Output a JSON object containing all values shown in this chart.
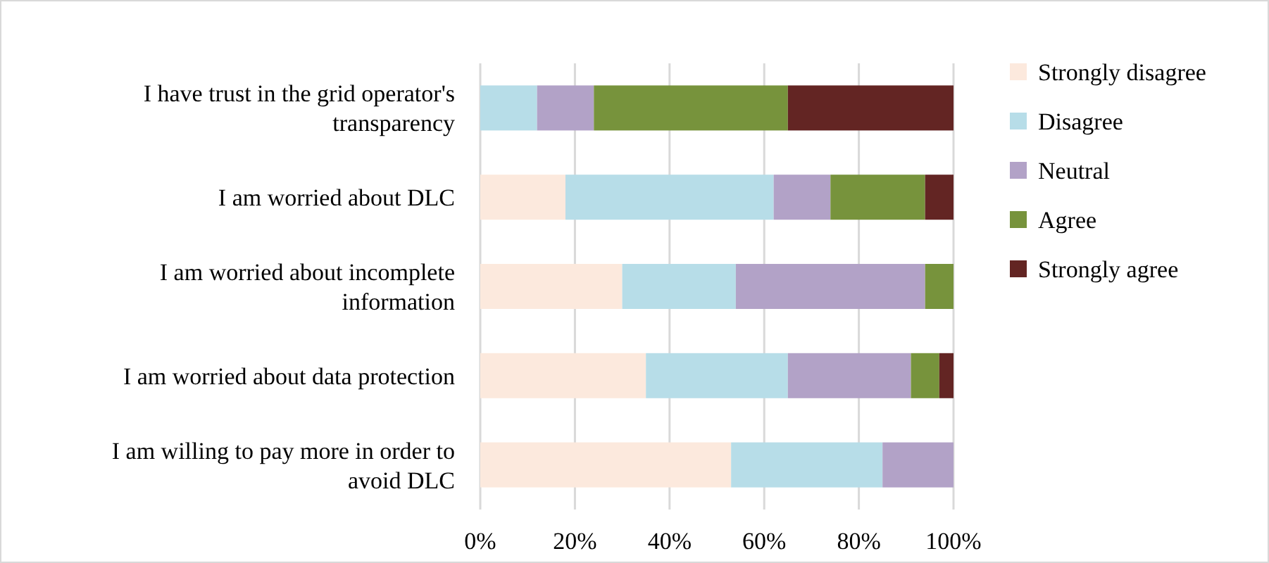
{
  "chart_data": {
    "type": "bar",
    "orientation": "horizontal",
    "stacked": true,
    "categories": [
      "I have trust in the grid operator's transparency",
      "I am worried about DLC",
      "I am worried about incomplete information",
      "I am worried about data protection",
      "I am willing to pay more in order to avoid DLC"
    ],
    "series": [
      {
        "name": "Strongly disagree",
        "color": "#fce9dd",
        "values": [
          0,
          18,
          30,
          35,
          53
        ]
      },
      {
        "name": "Disagree",
        "color": "#b7dde8",
        "values": [
          12,
          44,
          24,
          30,
          32
        ]
      },
      {
        "name": "Neutral",
        "color": "#b2a2c7",
        "values": [
          12,
          12,
          40,
          26,
          15
        ]
      },
      {
        "name": "Agree",
        "color": "#77933c",
        "values": [
          41,
          20,
          6,
          6,
          0
        ]
      },
      {
        "name": "Strongly agree",
        "color": "#632523",
        "values": [
          35,
          6,
          0,
          3,
          0
        ]
      }
    ],
    "xlim": [
      0,
      100
    ],
    "xticks": [
      {
        "value": 0,
        "label": "0%"
      },
      {
        "value": 20,
        "label": "20%"
      },
      {
        "value": 40,
        "label": "40%"
      },
      {
        "value": 60,
        "label": "60%"
      },
      {
        "value": 80,
        "label": "80%"
      },
      {
        "value": 100,
        "label": "100%"
      }
    ],
    "grid": "x",
    "legend": "right"
  }
}
